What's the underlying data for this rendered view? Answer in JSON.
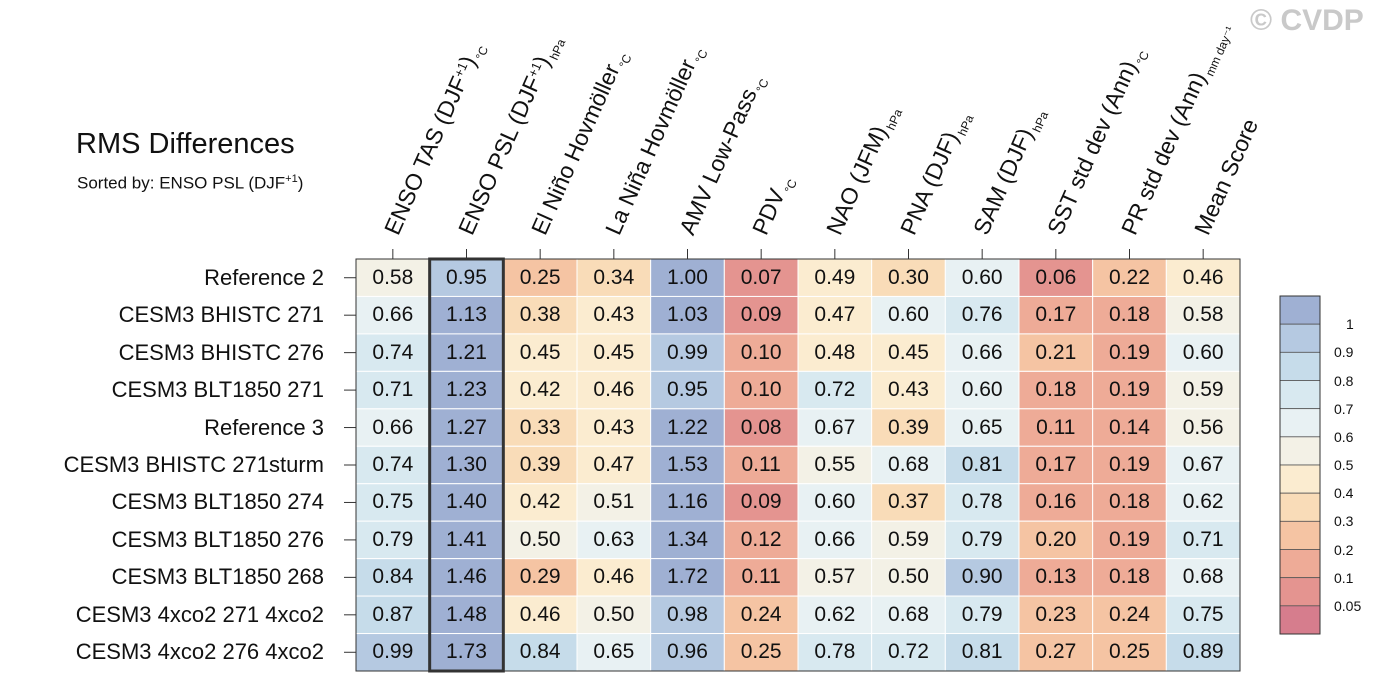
{
  "watermark": "© CVDP",
  "title": "RMS Differences",
  "subtitle": "Sorted by: ENSO PSL (DJF",
  "subtitle_sup": "+1",
  "subtitle_end": ")",
  "columns": [
    {
      "name": "ENSO TAS (DJF",
      "sup": "+1",
      "close": ")",
      "unit": "°C"
    },
    {
      "name": "ENSO PSL (DJF",
      "sup": "+1",
      "close": ")",
      "unit": "hPa"
    },
    {
      "name": "El Niño Hovmöller",
      "sup": "",
      "close": "",
      "unit": "°C"
    },
    {
      "name": "La Niña Hovmöller",
      "sup": "",
      "close": "",
      "unit": "°C"
    },
    {
      "name": "AMV Low-Pass",
      "sup": "",
      "close": "",
      "unit": "°C"
    },
    {
      "name": "PDV",
      "sup": "",
      "close": "",
      "unit": "°C"
    },
    {
      "name": "NAO (JFM)",
      "sup": "",
      "close": "",
      "unit": "hPa"
    },
    {
      "name": "PNA (DJF)",
      "sup": "",
      "close": "",
      "unit": "hPa"
    },
    {
      "name": "SAM (DJF)",
      "sup": "",
      "close": "",
      "unit": "hPa"
    },
    {
      "name": "SST std dev (Ann)",
      "sup": "",
      "close": "",
      "unit": "°C"
    },
    {
      "name": "PR std dev (Ann)",
      "sup": "",
      "close": "",
      "unit": "mm day⁻¹"
    },
    {
      "name": "Mean Score",
      "sup": "",
      "close": "",
      "unit": ""
    }
  ],
  "colorbar": {
    "levels": [
      "1",
      "0.9",
      "0.8",
      "0.7",
      "0.6",
      "0.5",
      "0.4",
      "0.3",
      "0.2",
      "0.1",
      "0.05"
    ],
    "colors": [
      "#9fb0d3",
      "#b5c9e1",
      "#c6dcea",
      "#d8e9f0",
      "#e8f1f3",
      "#f3f1e6",
      "#fbecd0",
      "#f9dcb8",
      "#f5c4a3",
      "#eeab97",
      "#e49490",
      "#d67d8d"
    ]
  },
  "chart_data": {
    "type": "heatmap",
    "title": "RMS Differences",
    "subtitle": "Sorted by: ENSO PSL (DJF+1)",
    "sorted_by": "ENSO PSL (DJF+1)",
    "highlighted_column": 1,
    "rows": [
      "Reference 2",
      "CESM3 BHISTC 271",
      "CESM3 BHISTC 276",
      "CESM3 BLT1850 271",
      "Reference 3",
      "CESM3 BHISTC 271sturm",
      "CESM3 BLT1850 274",
      "CESM3 BLT1850 276",
      "CESM3 BLT1850 268",
      "CESM3 4xco2 271 4xco2",
      "CESM3 4xco2 276 4xco2"
    ],
    "columns": [
      "ENSO TAS (DJF+1)",
      "ENSO PSL (DJF+1)",
      "El Niño Hovmöller",
      "La Niña Hovmöller",
      "AMV Low-Pass",
      "PDV",
      "NAO (JFM)",
      "PNA (DJF)",
      "SAM (DJF)",
      "SST std dev (Ann)",
      "PR std dev (Ann)",
      "Mean Score"
    ],
    "values": [
      [
        "0.58",
        "0.95",
        "0.25",
        "0.34",
        "1.00",
        "0.07",
        "0.49",
        "0.30",
        "0.60",
        "0.06",
        "0.22",
        "0.46"
      ],
      [
        "0.66",
        "1.13",
        "0.38",
        "0.43",
        "1.03",
        "0.09",
        "0.47",
        "0.60",
        "0.76",
        "0.17",
        "0.18",
        "0.58"
      ],
      [
        "0.74",
        "1.21",
        "0.45",
        "0.45",
        "0.99",
        "0.10",
        "0.48",
        "0.45",
        "0.66",
        "0.21",
        "0.19",
        "0.60"
      ],
      [
        "0.71",
        "1.23",
        "0.42",
        "0.46",
        "0.95",
        "0.10",
        "0.72",
        "0.43",
        "0.60",
        "0.18",
        "0.19",
        "0.59"
      ],
      [
        "0.66",
        "1.27",
        "0.33",
        "0.43",
        "1.22",
        "0.08",
        "0.67",
        "0.39",
        "0.65",
        "0.11",
        "0.14",
        "0.56"
      ],
      [
        "0.74",
        "1.30",
        "0.39",
        "0.47",
        "1.53",
        "0.11",
        "0.55",
        "0.68",
        "0.81",
        "0.17",
        "0.19",
        "0.67"
      ],
      [
        "0.75",
        "1.40",
        "0.42",
        "0.51",
        "1.16",
        "0.09",
        "0.60",
        "0.37",
        "0.78",
        "0.16",
        "0.18",
        "0.62"
      ],
      [
        "0.79",
        "1.41",
        "0.50",
        "0.63",
        "1.34",
        "0.12",
        "0.66",
        "0.59",
        "0.79",
        "0.20",
        "0.19",
        "0.71"
      ],
      [
        "0.84",
        "1.46",
        "0.29",
        "0.46",
        "1.72",
        "0.11",
        "0.57",
        "0.50",
        "0.90",
        "0.13",
        "0.18",
        "0.68"
      ],
      [
        "0.87",
        "1.48",
        "0.46",
        "0.50",
        "0.98",
        "0.24",
        "0.62",
        "0.68",
        "0.79",
        "0.23",
        "0.24",
        "0.75"
      ],
      [
        "0.99",
        "1.73",
        "0.84",
        "0.65",
        "0.96",
        "0.25",
        "0.78",
        "0.72",
        "0.81",
        "0.27",
        "0.25",
        "0.89"
      ]
    ],
    "color_norm": [
      [
        0.58,
        0.95,
        0.25,
        0.34,
        1.0,
        0.07,
        0.49,
        0.3,
        0.6,
        0.06,
        0.22,
        0.46
      ],
      [
        0.66,
        1.13,
        0.38,
        0.43,
        1.03,
        0.09,
        0.47,
        0.6,
        0.76,
        0.17,
        0.18,
        0.58
      ],
      [
        0.74,
        1.21,
        0.45,
        0.45,
        0.99,
        0.1,
        0.48,
        0.45,
        0.66,
        0.21,
        0.19,
        0.6
      ],
      [
        0.71,
        1.23,
        0.42,
        0.46,
        0.95,
        0.1,
        0.72,
        0.43,
        0.6,
        0.18,
        0.19,
        0.59
      ],
      [
        0.66,
        1.27,
        0.33,
        0.43,
        1.22,
        0.08,
        0.67,
        0.39,
        0.65,
        0.11,
        0.14,
        0.56
      ],
      [
        0.74,
        1.3,
        0.39,
        0.47,
        1.53,
        0.11,
        0.55,
        0.68,
        0.81,
        0.17,
        0.19,
        0.67
      ],
      [
        0.75,
        1.4,
        0.42,
        0.51,
        1.16,
        0.09,
        0.6,
        0.37,
        0.78,
        0.16,
        0.18,
        0.62
      ],
      [
        0.79,
        1.41,
        0.5,
        0.63,
        1.34,
        0.12,
        0.66,
        0.59,
        0.79,
        0.2,
        0.19,
        0.71
      ],
      [
        0.84,
        1.46,
        0.29,
        0.46,
        1.72,
        0.11,
        0.57,
        0.5,
        0.9,
        0.13,
        0.18,
        0.68
      ],
      [
        0.87,
        1.48,
        0.46,
        0.5,
        0.98,
        0.24,
        0.62,
        0.68,
        0.79,
        0.23,
        0.24,
        0.75
      ],
      [
        0.99,
        1.73,
        0.84,
        0.65,
        0.96,
        0.25,
        0.78,
        0.72,
        0.81,
        0.27,
        0.25,
        0.89
      ]
    ]
  }
}
